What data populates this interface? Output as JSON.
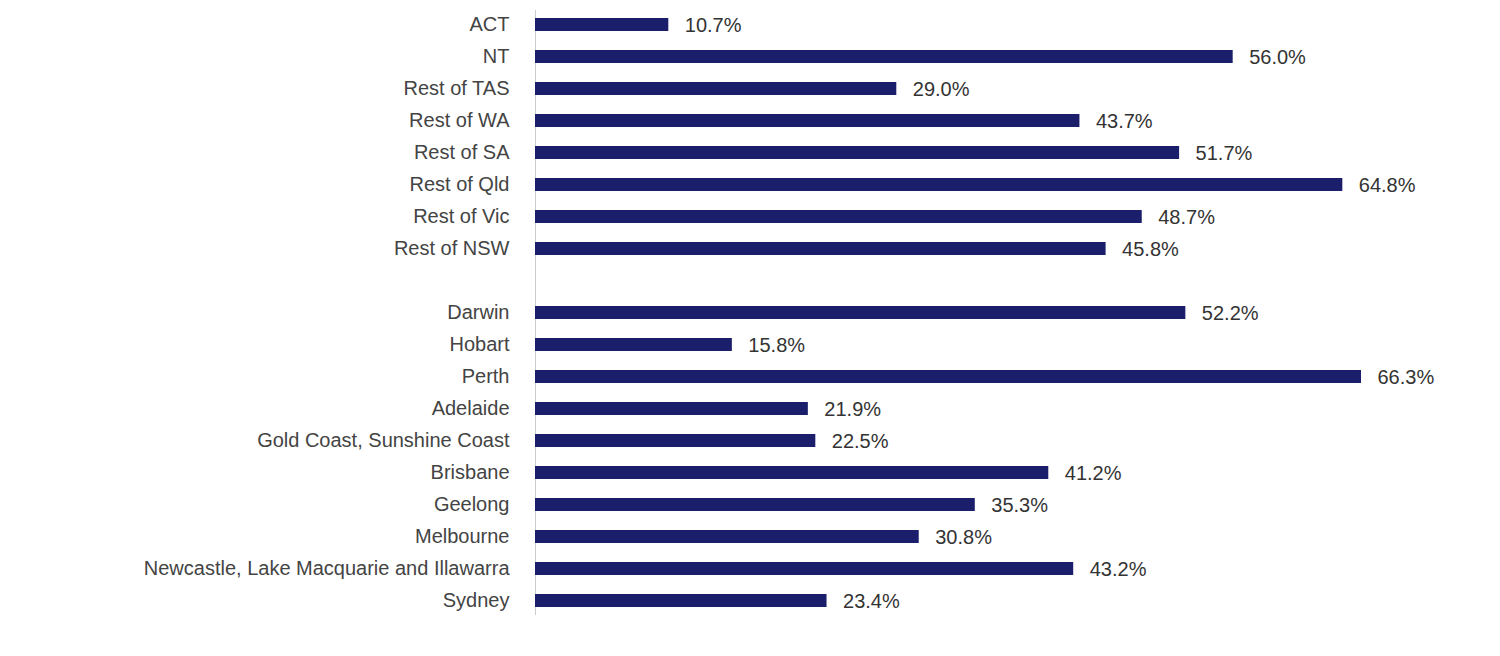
{
  "chart_data": {
    "type": "bar",
    "orientation": "horizontal",
    "categories": [
      "ACT",
      "NT",
      "Rest of TAS",
      "Rest of WA",
      "Rest of SA",
      "Rest of Qld",
      "Rest of Vic",
      "Rest of NSW",
      null,
      "Darwin",
      "Hobart",
      "Perth",
      "Adelaide",
      "Gold Coast, Sunshine Coast",
      "Brisbane",
      "Geelong",
      "Melbourne",
      "Newcastle, Lake Macquarie and Illawarra",
      "Sydney"
    ],
    "values": [
      10.7,
      56.0,
      29.0,
      43.7,
      51.7,
      64.8,
      48.7,
      45.8,
      null,
      52.2,
      15.8,
      66.3,
      21.9,
      22.5,
      41.2,
      35.3,
      30.8,
      43.2,
      23.4
    ],
    "value_labels": [
      "10.7%",
      "56.0%",
      "29.0%",
      "43.7%",
      "51.7%",
      "64.8%",
      "48.7%",
      "45.8%",
      null,
      "52.2%",
      "15.8%",
      "66.3%",
      "21.9%",
      "22.5%",
      "41.2%",
      "35.3%",
      "30.8%",
      "43.2%",
      "23.4%"
    ],
    "color": "#1b1f6b",
    "xlim": [
      0,
      66.3
    ],
    "data_labels": true,
    "tick_labels": "y",
    "grid": false
  }
}
